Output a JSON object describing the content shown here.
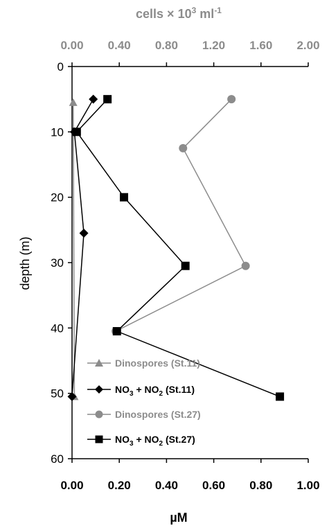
{
  "chart_data": {
    "type": "line",
    "orientation": "depth-profile",
    "top_axis": {
      "label": "cells × 10",
      "label_sup": "3",
      "label_unit": "ml",
      "label_unit_sup": "-1",
      "range": [
        0,
        2
      ],
      "ticks": [
        "0.00",
        "0.40",
        "0.80",
        "1.20",
        "1.60",
        "2.00"
      ],
      "tick_values": [
        0,
        0.4,
        0.8,
        1.2,
        1.6,
        2.0
      ]
    },
    "bottom_axis": {
      "label": "µM",
      "range": [
        0,
        1
      ],
      "ticks": [
        "0.00",
        "0.20",
        "0.40",
        "0.60",
        "0.80",
        "1.00"
      ],
      "tick_values": [
        0,
        0.2,
        0.4,
        0.6,
        0.8,
        1.0
      ]
    },
    "left_axis": {
      "label": "depth (m)",
      "range": [
        0,
        60
      ],
      "reversed": true,
      "ticks": [
        "0",
        "10",
        "20",
        "30",
        "40",
        "50",
        "60"
      ],
      "tick_values": [
        0,
        10,
        20,
        30,
        40,
        50,
        60
      ]
    },
    "legend_position": "bottom-left",
    "series": [
      {
        "name": "Dinospores (St.11)",
        "axis": "top",
        "marker": "triangle",
        "color": "#8c8c8c",
        "points": [
          {
            "x": 0.01,
            "depth": 5.5
          },
          {
            "x": 0.02,
            "depth": 50.5
          }
        ]
      },
      {
        "name_main": "NO",
        "name_sub1": "3",
        "name_mid": " + NO",
        "name_sub2": "2",
        "name_tail": " (St.11)",
        "axis": "bottom",
        "marker": "diamond",
        "color": "#000000",
        "points": [
          {
            "x": 0.09,
            "depth": 5
          },
          {
            "x": 0.01,
            "depth": 10
          },
          {
            "x": 0.05,
            "depth": 25.5
          },
          {
            "x": 0.0,
            "depth": 50.5
          }
        ]
      },
      {
        "name": "Dinospores (St.27)",
        "axis": "top",
        "marker": "circle",
        "color": "#8c8c8c",
        "points": [
          {
            "x": 1.35,
            "depth": 5
          },
          {
            "x": 0.94,
            "depth": 12.5
          },
          {
            "x": 1.47,
            "depth": 30.5
          },
          {
            "x": 0.37,
            "depth": 40.5
          }
        ]
      },
      {
        "name_main": "NO",
        "name_sub1": "3",
        "name_mid": " + NO",
        "name_sub2": "2",
        "name_tail": " (St.27)",
        "axis": "bottom",
        "marker": "square",
        "color": "#000000",
        "points": [
          {
            "x": 0.15,
            "depth": 5
          },
          {
            "x": 0.02,
            "depth": 10
          },
          {
            "x": 0.22,
            "depth": 20
          },
          {
            "x": 0.48,
            "depth": 30.5
          },
          {
            "x": 0.19,
            "depth": 40.5
          },
          {
            "x": 0.88,
            "depth": 50.5
          }
        ]
      }
    ]
  }
}
